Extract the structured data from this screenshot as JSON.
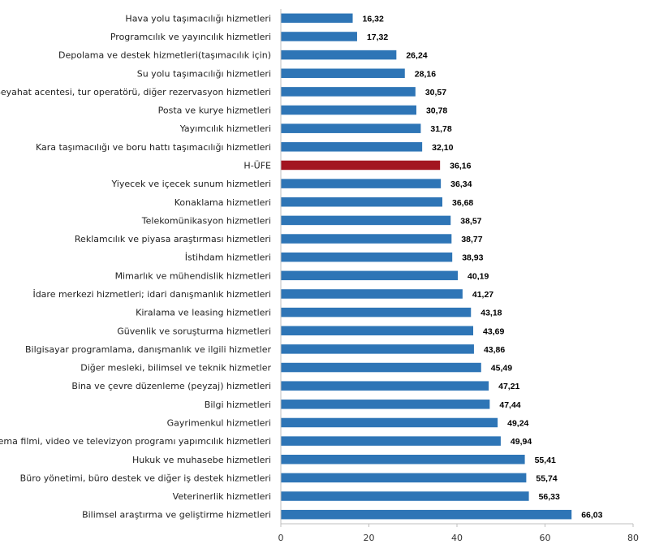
{
  "chart_data": {
    "type": "bar",
    "orientation": "horizontal",
    "title": "",
    "xlabel": "",
    "ylabel": "",
    "xlim": [
      0,
      80
    ],
    "xticks": [
      "0",
      "20",
      "40",
      "60",
      "80"
    ],
    "grid": false,
    "legend": "none",
    "colors": {
      "bar": "#2e75b6",
      "highlight": "#a31621",
      "axis": "#bfbfbf"
    },
    "categories": [
      "Hava yolu taşımacılığı hizmetleri",
      "Programcılık ve yayıncılık hizmetleri",
      "Depolama ve destek hizmetleri(taşımacılık için)",
      "Su yolu taşımacılığı hizmetleri",
      "Seyahat acentesi, tur operatörü, diğer rezervasyon hizmetleri",
      "Posta ve kurye hizmetleri",
      "Yayımcılık hizmetleri",
      "Kara taşımacılığı ve boru hattı taşımacılığı hizmetleri",
      "H-ÜFE",
      "Yiyecek ve içecek sunum hizmetleri",
      "Konaklama hizmetleri",
      "Telekomünikasyon hizmetleri",
      "Reklamcılık ve piyasa araştırması hizmetleri",
      "İstihdam hizmetleri",
      "Mimarlık ve mühendislik hizmetleri",
      "İdare merkezi hizmetleri; idari danışmanlık hizmetleri",
      "Kiralama ve leasing hizmetleri",
      "Güvenlik ve soruşturma hizmetleri",
      "Bilgisayar programlama, danışmanlık ve ilgili hizmetler",
      "Diğer mesleki, bilimsel ve teknik hizmetler",
      "Bina ve çevre düzenleme (peyzaj) hizmetleri",
      "Bilgi hizmetleri",
      "Gayrimenkul hizmetleri",
      "Sinema filmi, video ve televizyon programı yapımcılık hizmetleri",
      "Hukuk ve muhasebe hizmetleri",
      "Büro yönetimi, büro destek ve diğer iş destek hizmetleri",
      "Veterinerlik hizmetleri",
      "Bilimsel araştırma ve geliştirme hizmetleri"
    ],
    "values": [
      16.32,
      17.32,
      26.24,
      28.16,
      30.57,
      30.78,
      31.78,
      32.1,
      36.16,
      36.34,
      36.68,
      38.57,
      38.77,
      38.93,
      40.19,
      41.27,
      43.18,
      43.69,
      43.86,
      45.49,
      47.21,
      47.44,
      49.24,
      49.94,
      55.41,
      55.74,
      56.33,
      66.03
    ],
    "value_labels": [
      "16,32",
      "17,32",
      "26,24",
      "28,16",
      "30,57",
      "30,78",
      "31,78",
      "32,10",
      "36,16",
      "36,34",
      "36,68",
      "38,57",
      "38,77",
      "38,93",
      "40,19",
      "41,27",
      "43,18",
      "43,69",
      "43,86",
      "45,49",
      "47,21",
      "47,44",
      "49,24",
      "49,94",
      "55,41",
      "55,74",
      "56,33",
      "66,03"
    ],
    "highlight_category": "H-ÜFE"
  }
}
